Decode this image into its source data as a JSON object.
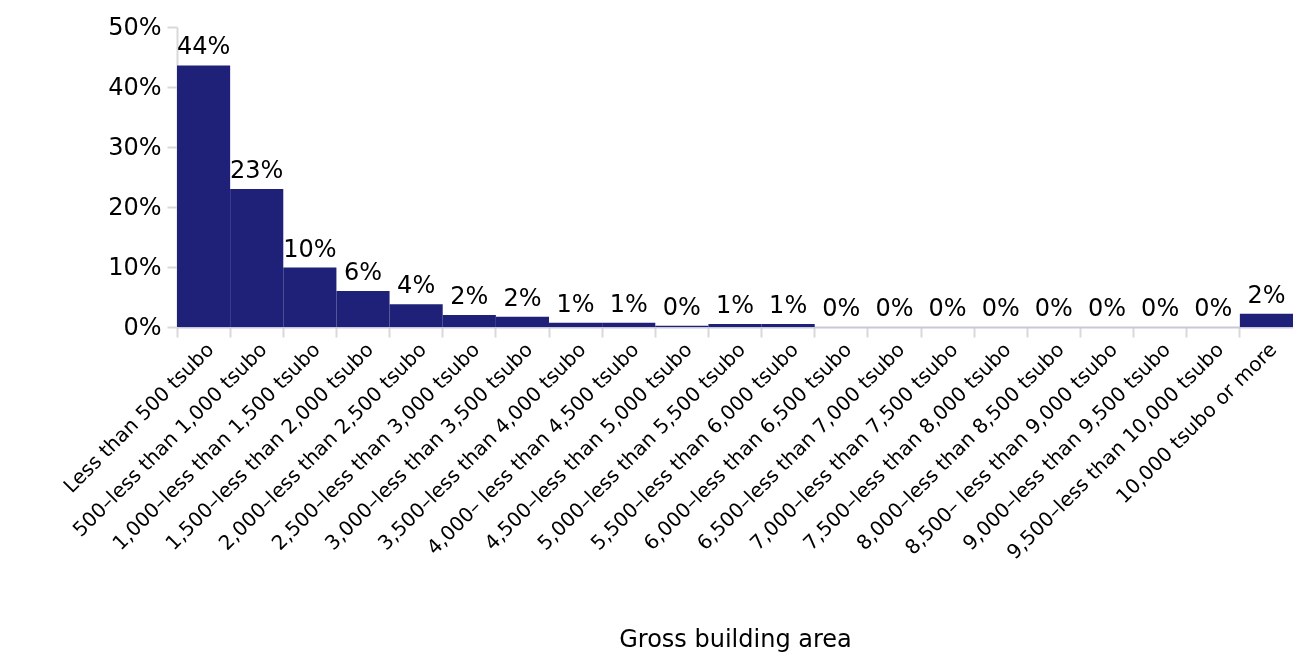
{
  "chart_data": {
    "type": "bar",
    "xlabel": "Gross building area",
    "categories": [
      "Less than 500 tsubo",
      "500–less than 1,000 tsubo",
      "1,000–less than 1,500 tsubo",
      "1,500–less than 2,000 tsubo",
      "2,000–less than 2,500 tsubo",
      "2,500–less than 3,000 tsubo",
      "3,000–less than 3,500 tsubo",
      "3,500–less than 4,000 tsubo",
      "4,000– less than 4,500 tsubo",
      "4,500–less than 5,000 tsubo",
      "5,000–less than 5,500 tsubo",
      "5,500–less than 6,000 tsubo",
      "6,000–less than 6,500 tsubo",
      "6,500–less than 7,000 tsubo",
      "7,000–less than 7,500 tsubo",
      "7,500–less than 8,000 tsubo",
      "8,000–less than 8,500 tsubo",
      "8,500– less than 9,000 tsubo",
      "9,000–less than 9,500 tsubo",
      "9,500–less than 10,000 tsubo",
      "10,000 tsubo or more"
    ],
    "values": [
      43.6,
      23.0,
      9.9,
      6.0,
      3.8,
      2.0,
      1.7,
      0.7,
      0.7,
      0.2,
      0.5,
      0.5,
      0,
      0,
      0,
      0,
      0,
      0,
      0,
      0,
      2.2
    ],
    "value_labels": [
      "44%",
      "23%",
      "10%",
      "6%",
      "4%",
      "2%",
      "2%",
      "1%",
      "1%",
      "0%",
      "1%",
      "1%",
      "0%",
      "0%",
      "0%",
      "0%",
      "0%",
      "0%",
      "0%",
      "0%",
      "2%"
    ],
    "color": "#1f2178",
    "ylim": [
      0,
      50
    ],
    "yticks": [
      {
        "value": 0,
        "label": "0%"
      },
      {
        "value": 10,
        "label": "10%"
      },
      {
        "value": 20,
        "label": "20%"
      },
      {
        "value": 30,
        "label": "30%"
      },
      {
        "value": 40,
        "label": "40%"
      },
      {
        "value": 50,
        "label": "50%"
      }
    ],
    "grid": false
  }
}
